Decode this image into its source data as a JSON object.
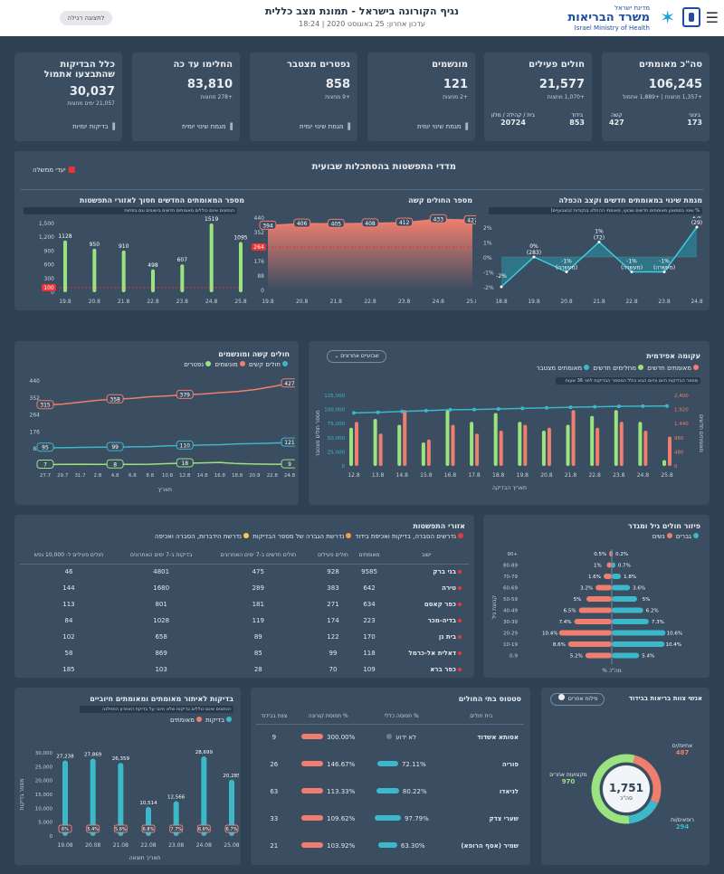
{
  "header": {
    "app_title": "נגיף הקורונה בישראל - תמונת מצב כללית",
    "updated": "עדכון אחרון: 25 באוגוסט 2020 | 18:24",
    "back_button": "לתצוגה רגילה",
    "logo_small": "מדינת ישראל",
    "logo_big": "משרד הבריאות",
    "logo_en": "Israel Ministry of Health"
  },
  "kpis": [
    {
      "title": "סה\"כ מאומתים",
      "value": "106,245",
      "delta": "+1,357 מחצות | +1,889 אתמול",
      "minis": [
        {
          "label": "בינוני",
          "value": "173"
        },
        {
          "label": "קשה",
          "value": "427"
        }
      ]
    },
    {
      "title": "חולים פעילים",
      "value": "21,577",
      "delta": "+1,070 מחצות",
      "minis": [
        {
          "label": "בידוד",
          "value": "853"
        },
        {
          "label": "בית / קהילה / מלון",
          "value": "20724"
        }
      ]
    },
    {
      "title": "מונשמים",
      "value": "121",
      "delta": "+2 מחצות",
      "link": "מגמת שינוי יומית"
    },
    {
      "title": "נפטרים מצטבר",
      "value": "858",
      "delta": "+9 מחצות",
      "link": "מגמת שינוי יומית"
    },
    {
      "title": "החלימו עד כה",
      "value": "83,810",
      "delta": "+278 מחצות",
      "link": "מגמת שינוי יומית"
    },
    {
      "title": "כלל הבדיקות שהתבצעו אתמול",
      "value": "30,037",
      "delta": "21,057 ימים מחצות",
      "link": "בדיקות יומיות"
    }
  ],
  "weekly": {
    "title": "מדדי התפשטות בהסתכלות שבועית",
    "legend": "יעדי ממשלה",
    "panels": [
      {
        "title": "מגמת שינוי במאומתים חדשים וקצב הכפלה",
        "note": "% שינוי בממוצע מאומתים חדשים שבועי, מאומתי ההחלט בנקודות (בשבועיים)"
      },
      {
        "title": "מספר החולים קשה"
      },
      {
        "title": "מספר המאומתים החדשים חסוך לאזורי התפשטות",
        "note": "הנתונים אינם כוללים מאומתים חדשים בישובים וגם בפחות"
      }
    ]
  },
  "chart_doubling": {
    "x": [
      "18.8",
      "19.8",
      "20.8",
      "21.8",
      "22.8",
      "23.8",
      "24.8"
    ],
    "values": [
      -2,
      0,
      -1,
      1,
      -1,
      -1,
      2
    ],
    "labels": [
      "-2%",
      "0%\n(283)",
      "-1%\n(מעשרה)",
      "1%\n(72)",
      "-1%\n(מעשרה)",
      "-1%\n(מעשרה)",
      "2%\n(29)"
    ],
    "ylim": [
      -2,
      2
    ],
    "yticks": [
      "2%",
      "1%",
      "0%",
      "-1%",
      "-2%"
    ]
  },
  "chart_severe": {
    "x": [
      "19.8",
      "20.8",
      "21.8",
      "22.8",
      "23.8",
      "24.8",
      "25.8"
    ],
    "values": [
      394,
      406,
      405,
      408,
      412,
      433,
      427
    ],
    "yticks": [
      "440",
      "352",
      "264",
      "176",
      "88",
      "0"
    ],
    "target": "264"
  },
  "chart_new_cases": {
    "x": [
      "19.8",
      "20.8",
      "21.8",
      "22.8",
      "23.8",
      "24.8",
      "25.8"
    ],
    "values": [
      1128,
      950,
      910,
      498,
      607,
      1519,
      1095
    ],
    "yticks": [
      "1,500",
      "1,200",
      "900",
      "600",
      "300",
      "0"
    ],
    "target": "100"
  },
  "severe_panel": {
    "title": "חולים קשה ומונשמים",
    "legend": [
      {
        "label": "חולים קשים",
        "color": "#3bb8c9"
      },
      {
        "label": "מונשמים",
        "color": "#f07e6e"
      },
      {
        "label": "נפטרים",
        "color": "#9be37e"
      }
    ],
    "xlabel": "תאריך",
    "x": [
      "27.7",
      "29.7",
      "31.7",
      "2.8",
      "4.8",
      "6.8",
      "8.8",
      "10.8",
      "12.8",
      "14.8",
      "16.8",
      "18.8",
      "20.8",
      "22.8",
      "24.8"
    ],
    "yticks": [
      "440",
      "352",
      "264",
      "176",
      "88",
      "0"
    ],
    "series": [
      {
        "name": "קשה",
        "color": "#f07e6e",
        "labels": [
          "315",
          "358",
          "379",
          "427"
        ],
        "values": [
          315,
          320,
          330,
          340,
          345,
          350,
          358,
          362,
          368,
          372,
          379,
          385,
          395,
          410,
          427
        ]
      },
      {
        "name": "מונשמים",
        "color": "#3bb8c9",
        "labels": [
          "95",
          "99",
          "110",
          "121"
        ],
        "values": [
          95,
          94,
          96,
          97,
          98,
          99,
          100,
          104,
          106,
          108,
          110,
          114,
          116,
          118,
          121
        ]
      },
      {
        "name": "נפטרים",
        "color": "#9be37e",
        "labels": [
          "7",
          "8",
          "18",
          "9"
        ],
        "values": [
          7,
          8,
          9,
          8,
          8,
          8,
          9,
          12,
          14,
          16,
          18,
          12,
          10,
          9,
          9
        ]
      }
    ]
  },
  "epi": {
    "title": "עקומה אפידמית",
    "dropdown": "שבועיים אחרונים",
    "legend": [
      "מאומתים חדשים",
      "מחלימים חדשים",
      "מאומתים מצטבר"
    ],
    "note": "מספר הבדיקות היום והיום הבא כולל המספר הבדיקות לפני 36 שעות",
    "xlabel": "תאריך הבדיקה",
    "ylabel_left": "מספר חולים מצטבר",
    "ylabel_right": "מאומתים חדשים",
    "x": [
      "12.8",
      "13.8",
      "14.8",
      "15.8",
      "16.8",
      "17.8",
      "18.8",
      "19.8",
      "20.8",
      "21.8",
      "22.8",
      "23.8",
      "24.8",
      "25.8"
    ],
    "cum": [
      94000,
      95000,
      96500,
      98000,
      99500,
      100000,
      101000,
      102000,
      103000,
      104000,
      104800,
      105500,
      106000,
      106245
    ],
    "recovered": [
      1300,
      1600,
      1400,
      800,
      1900,
      1500,
      1800,
      1500,
      1200,
      1400,
      1700,
      1900,
      1500,
      200
    ],
    "new": [
      1500,
      1100,
      1900,
      900,
      1400,
      1100,
      1200,
      1400,
      1300,
      1900,
      1300,
      1500,
      1200,
      1000
    ],
    "yl_ticks": [
      "125,000",
      "100,000",
      "75,000",
      "50,000",
      "25,000",
      "0"
    ],
    "yr_ticks": [
      "2,400",
      "1,920",
      "1,440",
      "960",
      "480",
      "0"
    ]
  },
  "spread": {
    "title": "אזורי התפשטות",
    "legend": [
      "נדרשים הסברה, בדיקות ואכיפת בידוד",
      "נדרשת הגברה של מספר הבדיקות",
      "נדרשת הידברות, הסברה ואכיפה"
    ],
    "columns": [
      "ישוב",
      "מאומתים",
      "חולים פעילים",
      "חולים חדשים ב-7 ימים האחרונים",
      "בדיקות ב-7 ימים האחרונים",
      "חולים פעילים ל- 10,000 נפש"
    ],
    "rows": [
      [
        "בני ברק",
        "9585",
        "928",
        "475",
        "4801",
        "46"
      ],
      [
        "טירה",
        "642",
        "383",
        "289",
        "1680",
        "144"
      ],
      [
        "כפר קאסם",
        "634",
        "271",
        "181",
        "801",
        "113"
      ],
      [
        "בדיה-מכר",
        "223",
        "174",
        "119",
        "1028",
        "84"
      ],
      [
        "בית גן",
        "170",
        "122",
        "89",
        "658",
        "102"
      ],
      [
        "דאלית אל-כרמל",
        "118",
        "99",
        "85",
        "869",
        "58"
      ],
      [
        "כפר ברא",
        "109",
        "70",
        "28",
        "103",
        "185"
      ]
    ]
  },
  "age": {
    "title": "פיזור חולים גיל ומגדר",
    "legend": [
      "גברים",
      "נשים"
    ],
    "ylabel": "קבוצת גיל",
    "xlabel": "% מה\"כ",
    "groups": [
      "90+",
      "80-89",
      "70-79",
      "60-69",
      "50-59",
      "40-49",
      "30-39",
      "20-29",
      "10-19",
      "0-9"
    ],
    "men": [
      0.2,
      0.7,
      1.8,
      3.6,
      5,
      6.2,
      7.3,
      10.6,
      10.4,
      5.4
    ],
    "women": [
      0.5,
      1,
      1.6,
      3.2,
      5,
      6.5,
      7.4,
      10.4,
      8.6,
      5.2
    ],
    "men_labels": [
      "0.2%",
      "0.7%",
      "1.8%",
      "3.6%",
      "5%",
      "6.2%",
      "7.3%",
      "10.6%",
      "10.4%",
      "5.4%"
    ],
    "women_labels": [
      "0.5%",
      "1%",
      "1.6%",
      "3.2%",
      "5%",
      "6.5%",
      "7.4%",
      "10.4%",
      "8.6%",
      "5.2%"
    ]
  },
  "tests": {
    "title": "בדיקות לאיתור מאומתים ומאומתים חיוביים",
    "note": "הנתונים אינם כוללים בדיקות שלא חיובי על בדיקת האחרון התחלנה",
    "legend": [
      "בדיקות",
      "מאומתים"
    ],
    "ylabel": "מספר בדיקות",
    "xlabel": "תאריך תוצאה",
    "x": [
      "19.08",
      "20.08",
      "21.08",
      "22.08",
      "23.08",
      "24.08",
      "25.08"
    ],
    "values": [
      27238,
      27869,
      26359,
      10514,
      12566,
      28699,
      20285
    ],
    "labels": [
      "27,238",
      "27,869",
      "26,359",
      "10,514",
      "12,566",
      "28,699",
      "20,285"
    ],
    "pct": [
      "6%",
      "5.4%",
      "5.6%",
      "6.8%",
      "7.7%",
      "6.6%",
      "6.7%"
    ],
    "yticks": [
      "30,000",
      "25,000",
      "20,000",
      "15,000",
      "10,000",
      "5,000",
      "0"
    ]
  },
  "hospitals": {
    "title": "סטטוס בתי החולים",
    "columns": [
      "בית חולים",
      "% תפוסה כללי",
      "% תפוסת קורונה",
      "צוות בבידוד"
    ],
    "rows": [
      {
        "name": "אסותא אשדוד",
        "general": "לא ידוע",
        "gpct": 0,
        "corona": "300.00%",
        "cpct": 100,
        "staff": "9"
      },
      {
        "name": "פוריה",
        "general": "72.11%",
        "gpct": 72,
        "corona": "146.67%",
        "cpct": 100,
        "staff": "26"
      },
      {
        "name": "לניאדו",
        "general": "80.22%",
        "gpct": 80,
        "corona": "113.33%",
        "cpct": 100,
        "staff": "63"
      },
      {
        "name": "שערי צדק",
        "general": "97.79%",
        "gpct": 98,
        "corona": "109.62%",
        "cpct": 100,
        "staff": "33"
      },
      {
        "name": "שמיר (אסף הרופא)",
        "general": "63.30%",
        "gpct": 63,
        "corona": "103.92%",
        "cpct": 100,
        "staff": "21"
      }
    ]
  },
  "staff": {
    "title": "אנשי צוות בריאות בבידוד",
    "filter": "פילוח אחרים",
    "total": "1,751",
    "total_label": "סה\"כ",
    "segments": [
      {
        "label": "אחיות/ים",
        "value": "487",
        "num": 487,
        "color": "#f07e6e"
      },
      {
        "label": "רופאים/ות",
        "value": "294",
        "num": 294,
        "color": "#3bb8c9"
      },
      {
        "label": "מקצועות אחרים",
        "value": "970",
        "num": 970,
        "color": "#9be37e"
      }
    ]
  }
}
